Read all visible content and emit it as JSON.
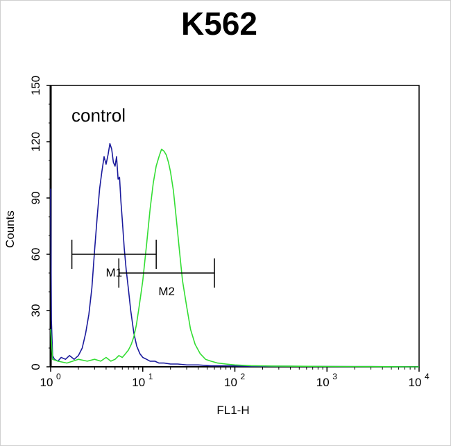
{
  "chart_data": {
    "type": "line",
    "title": "K562",
    "xlabel": "FL1-H",
    "ylabel": "Counts",
    "x_scale": "log",
    "xlim": [
      1,
      10000
    ],
    "ylim": [
      0,
      150
    ],
    "x_ticks": [
      {
        "value": 1,
        "base": "10",
        "exp": "0"
      },
      {
        "value": 10,
        "base": "10",
        "exp": "1"
      },
      {
        "value": 100,
        "base": "10",
        "exp": "2"
      },
      {
        "value": 1000,
        "base": "10",
        "exp": "3"
      },
      {
        "value": 10000,
        "base": "10",
        "exp": "4"
      }
    ],
    "y_ticks": [
      "0",
      "30",
      "60",
      "90",
      "120",
      "150"
    ],
    "grid": false,
    "annotation": "control",
    "colors": {
      "control": "#1a1a9c",
      "sample": "#33dd33",
      "axes": "#000000"
    },
    "series": [
      {
        "x": [
          1.0,
          1.02,
          1.05,
          1.1,
          1.2,
          1.3,
          1.45,
          1.6,
          1.8,
          2.0,
          2.2,
          2.4,
          2.6,
          2.8,
          3.0,
          3.2,
          3.4,
          3.6,
          3.8,
          4.0,
          4.2,
          4.4,
          4.6,
          4.8,
          5.0,
          5.2,
          5.4,
          5.6,
          5.8,
          6.0,
          6.3,
          6.6,
          7.0,
          7.4,
          8.0,
          8.6,
          9.3,
          10.0,
          11.0,
          12.0,
          13.5,
          15.0,
          17.0,
          20.0,
          24.0,
          30.0,
          40.0,
          55.0,
          80.0,
          150.0,
          400.0,
          1000.0,
          3000.0,
          10000.0
        ],
        "y": [
          95,
          25,
          6,
          4,
          3,
          5,
          4,
          6,
          4,
          6,
          10,
          18,
          28,
          42,
          62,
          80,
          95,
          104,
          112,
          108,
          113,
          119,
          116,
          109,
          107,
          112,
          100,
          101,
          88,
          78,
          63,
          52,
          41,
          30,
          18,
          11,
          7,
          5,
          4,
          3,
          3,
          2,
          2,
          1.5,
          1.5,
          1,
          1,
          0.5,
          0.5,
          0.3,
          0.3,
          0.2,
          0.1,
          0
        ]
      },
      {
        "x": [
          1.0,
          1.05,
          1.2,
          1.5,
          2.0,
          2.5,
          3.0,
          3.5,
          4.0,
          4.5,
          5.0,
          5.5,
          6.0,
          6.5,
          7.0,
          7.5,
          8.0,
          8.5,
          9.0,
          9.5,
          10.0,
          11.0,
          12.0,
          13.0,
          14.0,
          15.0,
          16.0,
          17.0,
          18.0,
          19.0,
          20.0,
          21.5,
          23.0,
          25.0,
          27.0,
          30.0,
          33.0,
          37.0,
          42.0,
          48.0,
          55.0,
          65.0,
          80.0,
          100.0,
          150.0,
          250.0,
          500.0,
          1000.0,
          3000.0,
          10000.0
        ],
        "y": [
          20,
          4,
          3,
          2,
          4,
          3,
          4,
          3,
          5,
          3,
          4,
          6,
          5,
          7,
          9,
          12,
          16,
          22,
          30,
          38,
          46,
          65,
          84,
          98,
          107,
          112,
          116,
          115,
          113,
          109,
          104,
          94,
          80,
          62,
          46,
          32,
          20,
          12,
          7,
          4,
          3,
          2,
          1.5,
          1,
          0.6,
          0.4,
          0.3,
          0.2,
          0.1,
          0
        ]
      }
    ],
    "markers": [
      {
        "label": "M1",
        "x_range": [
          1.7,
          14
        ],
        "y": 60
      },
      {
        "label": "M2",
        "x_range": [
          5.5,
          60
        ],
        "y": 50
      }
    ]
  }
}
